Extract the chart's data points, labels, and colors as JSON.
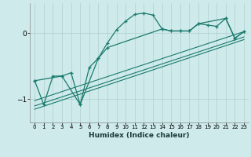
{
  "xlabel": "Humidex (Indice chaleur)",
  "xlim": [
    -0.5,
    23.5
  ],
  "ylim": [
    -1.35,
    0.45
  ],
  "yticks": [
    0,
    -1
  ],
  "xticks": [
    0,
    1,
    2,
    3,
    4,
    5,
    6,
    7,
    8,
    9,
    10,
    11,
    12,
    13,
    14,
    15,
    16,
    17,
    18,
    19,
    20,
    21,
    22,
    23
  ],
  "background_color": "#ceeaea",
  "line_color": "#1a7a6e",
  "grid_color": "#b0d0d0",
  "series": [
    {
      "x": [
        0,
        1,
        2,
        3,
        4,
        5,
        6,
        7,
        8,
        9,
        10,
        11,
        12,
        13,
        14,
        15,
        16,
        17,
        18,
        19,
        20,
        21,
        22,
        23
      ],
      "y": [
        -0.72,
        -1.08,
        -0.65,
        -0.65,
        -0.6,
        -1.08,
        -0.52,
        -0.38,
        -0.15,
        0.05,
        0.18,
        0.28,
        0.3,
        0.27,
        0.06,
        0.03,
        0.03,
        0.03,
        0.14,
        0.12,
        0.1,
        0.22,
        -0.08,
        0.02
      ],
      "marker": true,
      "lw": 0.9
    },
    {
      "x": [
        0,
        3,
        5,
        7,
        8,
        14,
        15,
        16,
        17,
        18,
        21,
        22,
        23
      ],
      "y": [
        -0.72,
        -0.65,
        -1.08,
        -0.38,
        -0.22,
        0.06,
        0.03,
        0.03,
        0.03,
        0.14,
        0.22,
        -0.08,
        0.02
      ],
      "marker": true,
      "lw": 0.9
    },
    {
      "x": [
        0,
        23
      ],
      "y": [
        -1.02,
        0.02
      ],
      "marker": false,
      "lw": 0.8
    },
    {
      "x": [
        0,
        23
      ],
      "y": [
        -1.1,
        -0.06
      ],
      "marker": false,
      "lw": 0.8
    },
    {
      "x": [
        0,
        23
      ],
      "y": [
        -1.15,
        -0.1
      ],
      "marker": false,
      "lw": 0.8
    }
  ]
}
